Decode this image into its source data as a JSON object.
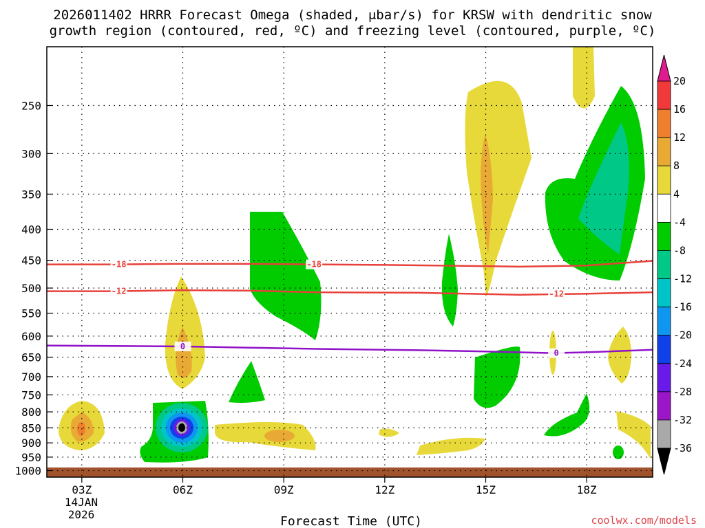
{
  "chart_data": {
    "type": "heatmap",
    "title_line1": "2026011402 HRRR Forecast Omega (shaded, μbar/s) for KRSW with dendritic snow",
    "title_line2": "growth region (contoured, red, ºC) and freezing level (contoured, purple, ºC)",
    "xlabel": "Forecast Time (UTC)",
    "date_label_1": "14JAN",
    "date_label_2": "2026",
    "credit": "coolwx.com/models",
    "x_ticks": [
      "03Z",
      "06Z",
      "09Z",
      "12Z",
      "15Z",
      "18Z"
    ],
    "x_tick_hours": [
      3,
      6,
      9,
      12,
      15,
      18
    ],
    "x_range_hours": [
      1.96,
      19.96
    ],
    "y_ticks": [
      "250",
      "300",
      "350",
      "400",
      "450",
      "500",
      "550",
      "600",
      "650",
      "700",
      "750",
      "800",
      "850",
      "900",
      "950",
      "1000"
    ],
    "y_tick_values": [
      250,
      300,
      350,
      400,
      450,
      500,
      550,
      600,
      650,
      700,
      750,
      800,
      850,
      900,
      950,
      1000
    ],
    "y_range_hpa": [
      200,
      1025
    ],
    "colorbar": {
      "labels": [
        "20",
        "16",
        "12",
        "8",
        "4",
        "-4",
        "-8",
        "-12",
        "-16",
        "-20",
        "-24",
        "-28",
        "-32",
        "-36"
      ],
      "colors": [
        "#e01a8f",
        "#f03a3a",
        "#ef7f2e",
        "#e8aa35",
        "#e8d93a",
        "#ffffff",
        "#00cc00",
        "#00c887",
        "#00c4c8",
        "#0f96f0",
        "#1040e8",
        "#6a1ae8",
        "#9a16c8",
        "#a9a9a9",
        "#000000"
      ]
    },
    "contours": [
      {
        "name": "dgz-minus-18",
        "label": "-18",
        "color": "#e8403a",
        "points": [
          [
            1.96,
            457
          ],
          [
            4,
            457
          ],
          [
            6,
            456
          ],
          [
            8,
            456
          ],
          [
            10,
            457
          ],
          [
            12,
            458
          ],
          [
            15,
            460
          ],
          [
            16,
            461
          ],
          [
            18,
            459
          ],
          [
            19.96,
            451
          ]
        ]
      },
      {
        "name": "dgz-minus-12",
        "label": "-12",
        "color": "#e8403a",
        "points": [
          [
            1.96,
            506
          ],
          [
            4,
            506
          ],
          [
            6,
            504
          ],
          [
            8,
            505
          ],
          [
            10,
            508
          ],
          [
            13,
            509
          ],
          [
            16,
            513
          ],
          [
            18,
            511
          ],
          [
            19.96,
            508
          ]
        ]
      },
      {
        "name": "freezing-level-0",
        "label": "0",
        "color": "#9012c8",
        "points": [
          [
            1.96,
            622
          ],
          [
            4,
            623
          ],
          [
            6,
            624
          ],
          [
            8,
            627
          ],
          [
            10,
            630
          ],
          [
            13,
            633
          ],
          [
            15,
            636
          ],
          [
            17,
            640
          ],
          [
            18,
            638
          ],
          [
            19.96,
            632
          ]
        ]
      }
    ],
    "contour_label_positions": [
      {
        "label": "-18",
        "x": 4.1,
        "p": 457
      },
      {
        "label": "-18",
        "x": 9.9,
        "p": 457
      },
      {
        "label": "-12",
        "x": 4.1,
        "p": 506
      },
      {
        "label": "-12",
        "x": 17.1,
        "p": 511
      },
      {
        "label": "0",
        "x": 6.0,
        "p": 624
      },
      {
        "label": "0",
        "x": 17.1,
        "p": 640
      }
    ]
  }
}
